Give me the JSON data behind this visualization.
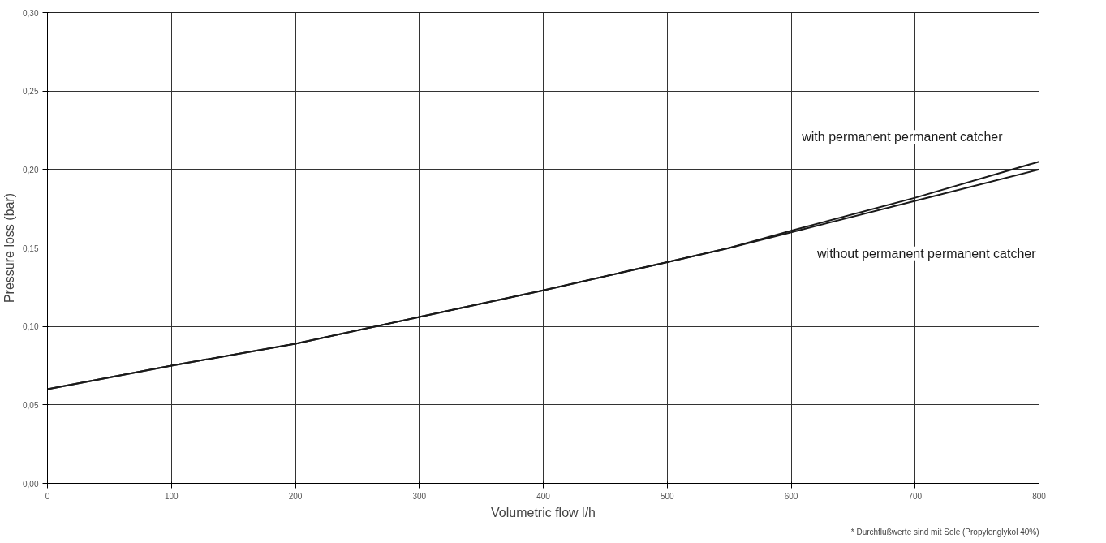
{
  "chart_data": {
    "type": "line",
    "xlabel": "Volumetric flow l/h",
    "ylabel": "Pressure loss (bar)",
    "x": [
      0,
      100,
      200,
      300,
      400,
      500,
      550,
      600,
      700,
      800
    ],
    "series": [
      {
        "name": "with permanent permanent catcher",
        "color": "#1a1a1a",
        "values": [
          0.06,
          0.075,
          0.089,
          0.106,
          0.123,
          0.141,
          0.15,
          0.161,
          0.182,
          0.205
        ]
      },
      {
        "name": "without permanent permanent catcher",
        "color": "#1a1a1a",
        "values": [
          0.06,
          0.075,
          0.089,
          0.106,
          0.123,
          0.141,
          0.15,
          0.16,
          0.18,
          0.2
        ]
      }
    ],
    "xlim": [
      0,
      800
    ],
    "xticks": [
      0,
      100,
      200,
      300,
      400,
      500,
      600,
      700,
      800
    ],
    "ylim": [
      0,
      0.3
    ],
    "yticks": [
      {
        "value": 0,
        "label": "0,00"
      },
      {
        "value": 0.05,
        "label": "0,05"
      },
      {
        "value": 0.1,
        "label": "0,10"
      },
      {
        "value": 0.15,
        "label": "0,15"
      },
      {
        "value": 0.2,
        "label": "0,20"
      },
      {
        "value": 0.25,
        "label": "0,25"
      },
      {
        "value": 0.3,
        "label": "0,30"
      }
    ],
    "grid": true,
    "legend": false,
    "marker": "none",
    "line_style": "solid",
    "annotations": [
      "* Durchflußwerte sind mit Sole (Propylenglykol 40%)"
    ]
  }
}
